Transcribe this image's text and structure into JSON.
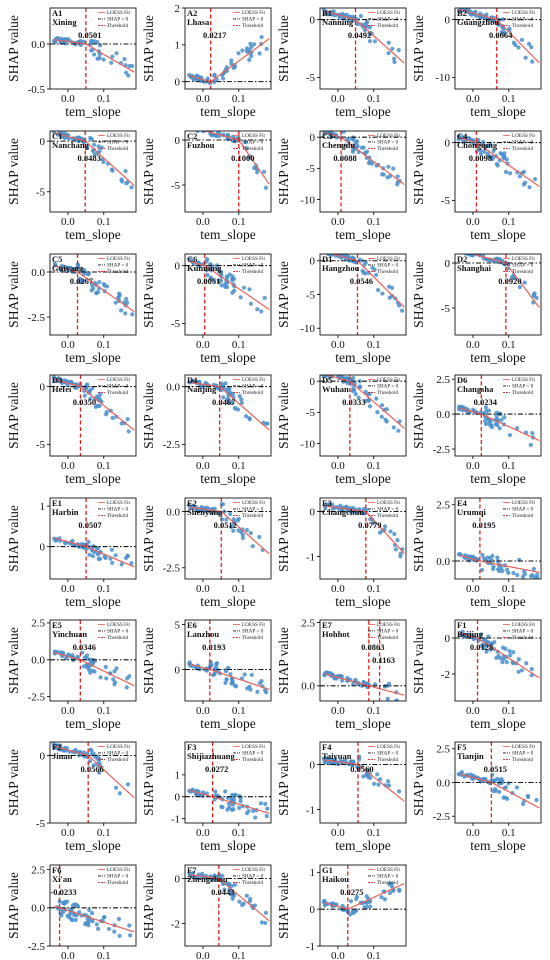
{
  "figure": {
    "xlabel": "tem_slope",
    "ylabel": "SHAP value",
    "legend": [
      "LOESS Fit",
      "SHAP = 0",
      "Threshold"
    ],
    "colors": {
      "points": "#4a8fcc",
      "loess": "#e8625a",
      "threshold": "#e0201c",
      "zero_line": "#111111"
    }
  },
  "chart_data": [
    {
      "type": "scatter",
      "id": "A1",
      "city": "Xining",
      "threshold": "0.0501",
      "ylim": [
        -0.5,
        0.4
      ],
      "yticks": [
        "0.0",
        "-0.5"
      ],
      "xticks": [
        "0.0",
        "0.1"
      ]
    },
    {
      "type": "scatter",
      "id": "A2",
      "city": "Lhasa",
      "threshold": "0.0217",
      "ylim": [
        -0.2,
        2.0
      ],
      "yticks": [
        "2",
        "1",
        "0"
      ],
      "xticks": [
        "0.0",
        "0.1"
      ]
    },
    {
      "type": "scatter",
      "id": "B1",
      "city": "Nanning",
      "threshold": "0.0492",
      "ylim": [
        -6,
        1
      ],
      "yticks": [
        "0",
        "-5"
      ],
      "xticks": [
        "0.0",
        "0.1"
      ]
    },
    {
      "type": "scatter",
      "id": "B2",
      "city": "Guangzhou",
      "threshold": "0.0664",
      "ylim": [
        -12,
        2
      ],
      "yticks": [
        "0",
        "-10"
      ],
      "xticks": [
        "0.0",
        "0.1"
      ]
    },
    {
      "type": "scatter",
      "id": "C1",
      "city": "Nanchang",
      "threshold": "0.0483",
      "ylim": [
        -7,
        1
      ],
      "yticks": [
        "0",
        "-5"
      ],
      "xticks": [
        "0.0",
        "0.1"
      ]
    },
    {
      "type": "scatter",
      "id": "C2",
      "city": "Fuzhou",
      "threshold": "0.1000",
      "ylim": [
        -8,
        1
      ],
      "yticks": [
        "0",
        "-5"
      ],
      "xticks": [
        "0.0",
        "0.1"
      ]
    },
    {
      "type": "scatter",
      "id": "C3",
      "city": "Chengdu",
      "threshold": "0.0088",
      "ylim": [
        -12,
        1
      ],
      "yticks": [
        "0",
        "-5",
        "-10"
      ],
      "xticks": [
        "0.0",
        "0.1"
      ]
    },
    {
      "type": "scatter",
      "id": "C4",
      "city": "Chongqing",
      "threshold": "0.0098",
      "ylim": [
        -6,
        1
      ],
      "yticks": [
        "0",
        "-5"
      ],
      "xticks": [
        "0.0",
        "0.1"
      ]
    },
    {
      "type": "scatter",
      "id": "C5",
      "city": "Guiyang",
      "threshold": "0.0267",
      "ylim": [
        -3.5,
        1
      ],
      "yticks": [
        "0.0",
        "-2.5"
      ],
      "xticks": [
        "0.0",
        "0.1"
      ]
    },
    {
      "type": "scatter",
      "id": "C6",
      "city": "Kunming",
      "threshold": "0.0051",
      "ylim": [
        -6,
        1
      ],
      "yticks": [
        "0",
        "-5"
      ],
      "xticks": [
        "0.0",
        "0.1"
      ]
    },
    {
      "type": "scatter",
      "id": "D1",
      "city": "Hangzhou",
      "threshold": "0.0546",
      "ylim": [
        -11,
        1
      ],
      "yticks": [
        "0",
        "-5",
        "-10"
      ],
      "xticks": [
        "0.0",
        "0.1"
      ]
    },
    {
      "type": "scatter",
      "id": "D2",
      "city": "Shanghai",
      "threshold": "0.0920",
      "ylim": [
        -8,
        1
      ],
      "yticks": [
        "0",
        "-5"
      ],
      "xticks": [
        "0.0",
        "0.1"
      ]
    },
    {
      "type": "scatter",
      "id": "D3",
      "city": "Hefei",
      "threshold": "0.0350",
      "ylim": [
        -6,
        1
      ],
      "yticks": [
        "0",
        "-5"
      ],
      "xticks": [
        "0.0",
        "0.1"
      ]
    },
    {
      "type": "scatter",
      "id": "D4",
      "city": "Nanjing",
      "threshold": "0.0467",
      "ylim": [
        -3,
        0.5
      ],
      "yticks": [
        "0.0",
        "-2.5"
      ],
      "xticks": [
        "0.0",
        "0.1"
      ]
    },
    {
      "type": "scatter",
      "id": "D5",
      "city": "Wuhan",
      "threshold": "0.0333",
      "ylim": [
        -12,
        1
      ],
      "yticks": [
        "0",
        "-5",
        "-10"
      ],
      "xticks": [
        "0.0",
        "0.1"
      ]
    },
    {
      "type": "scatter",
      "id": "D6",
      "city": "Changsha",
      "threshold": "0.0234",
      "ylim": [
        -3,
        2.8
      ],
      "yticks": [
        "2.5",
        "0.0",
        "-2.5"
      ],
      "xticks": [
        "0.0",
        "0.1"
      ]
    },
    {
      "type": "scatter",
      "id": "E1",
      "city": "Harbin",
      "threshold": "0.0507",
      "ylim": [
        -0.8,
        1.2
      ],
      "yticks": [
        "1",
        "0"
      ],
      "xticks": [
        "0.0",
        "0.1"
      ]
    },
    {
      "type": "scatter",
      "id": "E2",
      "city": "Shenyang",
      "threshold": "0.0512",
      "ylim": [
        -3,
        0.6
      ],
      "yticks": [
        "0.0",
        "-2.5"
      ],
      "xticks": [
        "0.0",
        "0.1"
      ]
    },
    {
      "type": "scatter",
      "id": "E3",
      "city": "Changchun",
      "threshold": "0.0779",
      "ylim": [
        -1.5,
        0.3
      ],
      "yticks": [
        "0",
        "-1"
      ],
      "xticks": [
        "0.0",
        "0.1"
      ]
    },
    {
      "type": "scatter",
      "id": "E4",
      "city": "Urumqi",
      "threshold": "0.0195",
      "ylim": [
        -0.8,
        2.8
      ],
      "yticks": [
        "2.5",
        "0.0"
      ],
      "xticks": [
        "0.0",
        "0.1"
      ]
    },
    {
      "type": "scatter",
      "id": "E5",
      "city": "Yinchuan",
      "threshold": "0.0346",
      "ylim": [
        -2.8,
        2.7
      ],
      "yticks": [
        "2.5",
        "0.0",
        "-2.5"
      ],
      "xticks": [
        "0.0",
        "0.1"
      ]
    },
    {
      "type": "scatter",
      "id": "E6",
      "city": "Lanzhou",
      "threshold": "0.0193",
      "ylim": [
        -3.5,
        5.5
      ],
      "yticks": [
        "5",
        "0"
      ],
      "xticks": [
        "0.0",
        "0.1"
      ]
    },
    {
      "type": "scatter",
      "id": "E7",
      "city": "Hohhot",
      "thresholds": [
        "0.0863",
        "0.1163"
      ],
      "ylim": [
        -0.6,
        2.6
      ],
      "yticks": [
        "2.5",
        "0.0"
      ],
      "xticks": [
        "0.0",
        "0.1"
      ]
    },
    {
      "type": "scatter",
      "id": "F1",
      "city": "Beijing",
      "threshold": "0.0128",
      "ylim": [
        -3.5,
        1
      ],
      "yticks": [
        "0",
        "-2"
      ],
      "xticks": [
        "0.0",
        "0.1"
      ]
    },
    {
      "type": "scatter",
      "id": "F2",
      "city": "Jinan",
      "threshold": "0.0566",
      "ylim": [
        -5,
        1
      ],
      "yticks": [
        "0",
        "-5"
      ],
      "xticks": [
        "0.0",
        "0.1"
      ]
    },
    {
      "type": "scatter",
      "id": "F3",
      "city": "Shijiazhuang",
      "threshold": "0.0272",
      "ylim": [
        -1.2,
        2.5
      ],
      "yticks": [
        "1",
        "0",
        "-1"
      ],
      "xticks": [
        "0.0",
        "0.1"
      ]
    },
    {
      "type": "scatter",
      "id": "F4",
      "city": "Taiyuan",
      "threshold": "0.0560",
      "ylim": [
        -1.3,
        0.5
      ],
      "yticks": [
        "0",
        "-1"
      ],
      "xticks": [
        "0.0",
        "0.1"
      ]
    },
    {
      "type": "scatter",
      "id": "F5",
      "city": "Tianjin",
      "threshold": "0.0515",
      "ylim": [
        -3,
        3
      ],
      "yticks": [
        "2.5",
        "0.0",
        "-2.5"
      ],
      "xticks": [
        "0.0",
        "0.1"
      ]
    },
    {
      "type": "scatter",
      "id": "F6",
      "city": "Xi'an",
      "threshold": "-0.0233",
      "ylim": [
        -2.5,
        2.8
      ],
      "yticks": [
        "2.5",
        "0.0",
        "-2.5"
      ],
      "xticks": [
        "0.0",
        "0.1"
      ]
    },
    {
      "type": "scatter",
      "id": "F7",
      "city": "Zhengzhou",
      "threshold": "0.0443",
      "ylim": [
        -3,
        0.6
      ],
      "yticks": [
        "0",
        "-2"
      ],
      "xticks": [
        "0.0",
        "0.1"
      ]
    },
    {
      "type": "scatter",
      "id": "G1",
      "city": "Haikou",
      "threshold": "0.0275",
      "ylim": [
        -1,
        1.2
      ],
      "yticks": [
        "1",
        "0",
        "-1"
      ],
      "xticks": [
        "0.0",
        "0.1"
      ]
    }
  ]
}
